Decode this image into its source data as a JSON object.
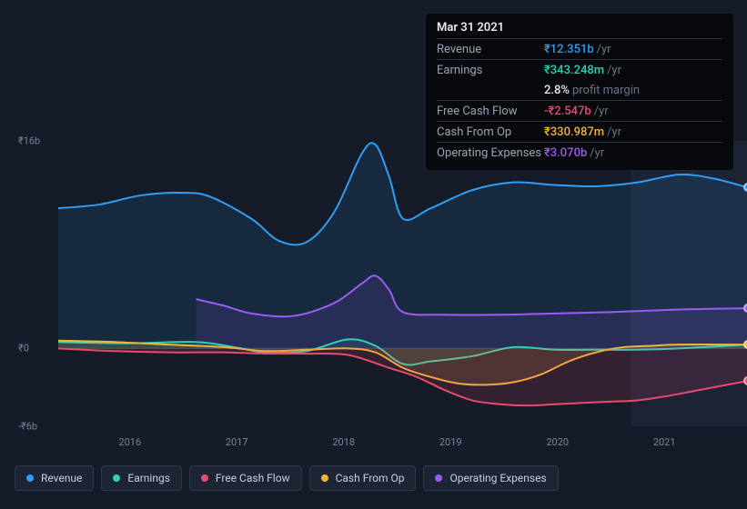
{
  "tooltip": {
    "date": "Mar 31 2021",
    "rows": [
      {
        "label": "Revenue",
        "value": "₹12.351b",
        "unit": "/yr",
        "color": "#2f9df4"
      },
      {
        "label": "Earnings",
        "value": "₹343.248m",
        "unit": "/yr",
        "color": "#2fd0b8"
      },
      {
        "label": "",
        "value": "2.8%",
        "unit": "profit margin",
        "color": "#e8ecf2",
        "no_border": true
      },
      {
        "label": "Free Cash Flow",
        "value": "-₹2.547b",
        "unit": "/yr",
        "color": "#e84a6f"
      },
      {
        "label": "Cash From Op",
        "value": "₹330.987m",
        "unit": "/yr",
        "color": "#f2b33d"
      },
      {
        "label": "Operating Expenses",
        "value": "₹3.070b",
        "unit": "/yr",
        "color": "#9a5cf4"
      }
    ]
  },
  "axes": {
    "y": {
      "min": -6,
      "max": 16,
      "ticks": [
        16,
        0,
        -6
      ],
      "labels": [
        "₹16b",
        "₹0",
        "-₹6b"
      ]
    },
    "x": {
      "ticks": [
        "2016",
        "2017",
        "2018",
        "2019",
        "2020",
        "2021"
      ],
      "positions_pct": [
        12.5,
        28,
        43.5,
        59,
        74.5,
        90
      ]
    }
  },
  "chart": {
    "type": "area",
    "background_color": "#151b27",
    "grid_color": "#2a3142",
    "plot_highlight_band": {
      "from_pct": 83,
      "to_pct": 100,
      "fill": "#1b2334"
    },
    "series": [
      {
        "name": "Revenue",
        "color": "#2f9df4",
        "fill_opacity": 0.12,
        "points": [
          [
            0,
            10.8
          ],
          [
            6,
            11.1
          ],
          [
            12,
            11.8
          ],
          [
            18,
            12.0
          ],
          [
            22,
            11.7
          ],
          [
            28,
            10.0
          ],
          [
            32,
            8.3
          ],
          [
            36,
            8.2
          ],
          [
            40,
            10.5
          ],
          [
            44,
            15.0
          ],
          [
            46,
            15.7
          ],
          [
            48,
            13.2
          ],
          [
            50,
            10.0
          ],
          [
            54,
            10.8
          ],
          [
            60,
            12.2
          ],
          [
            66,
            12.8
          ],
          [
            72,
            12.6
          ],
          [
            78,
            12.5
          ],
          [
            84,
            12.8
          ],
          [
            90,
            13.4
          ],
          [
            95,
            13.1
          ],
          [
            100,
            12.4
          ]
        ]
      },
      {
        "name": "Operating Expenses",
        "color": "#9a5cf4",
        "fill_opacity": 0.12,
        "start_pct": 20,
        "points": [
          [
            20,
            3.8
          ],
          [
            24,
            3.3
          ],
          [
            28,
            2.7
          ],
          [
            34,
            2.5
          ],
          [
            40,
            3.5
          ],
          [
            44,
            5.0
          ],
          [
            46,
            5.6
          ],
          [
            48,
            4.5
          ],
          [
            50,
            2.8
          ],
          [
            56,
            2.6
          ],
          [
            64,
            2.6
          ],
          [
            72,
            2.7
          ],
          [
            80,
            2.8
          ],
          [
            90,
            3.0
          ],
          [
            100,
            3.1
          ]
        ]
      },
      {
        "name": "Revenue_under",
        "color": "#1a4f7a",
        "fill_opacity": 0.06,
        "is_shadow": true,
        "points": []
      },
      {
        "name": "Earnings",
        "color": "#2fd0b8",
        "fill_opacity": 0.1,
        "points": [
          [
            0,
            0.5
          ],
          [
            10,
            0.4
          ],
          [
            20,
            0.5
          ],
          [
            26,
            0.05
          ],
          [
            30,
            -0.3
          ],
          [
            36,
            -0.2
          ],
          [
            42,
            0.7
          ],
          [
            46,
            0.2
          ],
          [
            50,
            -1.2
          ],
          [
            54,
            -1.0
          ],
          [
            60,
            -0.6
          ],
          [
            66,
            0.1
          ],
          [
            72,
            -0.1
          ],
          [
            78,
            -0.1
          ],
          [
            84,
            -0.1
          ],
          [
            90,
            0.0
          ],
          [
            100,
            0.3
          ]
        ]
      },
      {
        "name": "Cash From Op",
        "color": "#f2b33d",
        "fill_opacity": 0.15,
        "points": [
          [
            0,
            0.6
          ],
          [
            8,
            0.5
          ],
          [
            16,
            0.3
          ],
          [
            24,
            0.1
          ],
          [
            30,
            -0.2
          ],
          [
            36,
            -0.1
          ],
          [
            42,
            0.0
          ],
          [
            46,
            -0.3
          ],
          [
            50,
            -1.5
          ],
          [
            54,
            -2.2
          ],
          [
            58,
            -2.7
          ],
          [
            62,
            -2.8
          ],
          [
            66,
            -2.6
          ],
          [
            70,
            -2.0
          ],
          [
            74,
            -1.0
          ],
          [
            78,
            -0.3
          ],
          [
            82,
            0.1
          ],
          [
            86,
            0.2
          ],
          [
            90,
            0.3
          ],
          [
            100,
            0.3
          ]
        ]
      },
      {
        "name": "Free Cash Flow",
        "color": "#e84a6f",
        "fill_opacity": 0.15,
        "points": [
          [
            0,
            0.0
          ],
          [
            8,
            -0.2
          ],
          [
            16,
            -0.3
          ],
          [
            24,
            -0.3
          ],
          [
            30,
            -0.4
          ],
          [
            36,
            -0.4
          ],
          [
            42,
            -0.5
          ],
          [
            48,
            -1.5
          ],
          [
            52,
            -2.2
          ],
          [
            56,
            -3.2
          ],
          [
            60,
            -4.0
          ],
          [
            64,
            -4.3
          ],
          [
            68,
            -4.4
          ],
          [
            72,
            -4.3
          ],
          [
            76,
            -4.2
          ],
          [
            80,
            -4.1
          ],
          [
            84,
            -4.0
          ],
          [
            88,
            -3.7
          ],
          [
            92,
            -3.3
          ],
          [
            96,
            -2.9
          ],
          [
            100,
            -2.5
          ]
        ]
      }
    ],
    "end_dots": [
      {
        "series": "Revenue",
        "color": "#2f9df4"
      },
      {
        "series": "Operating Expenses",
        "color": "#9a5cf4"
      },
      {
        "series": "Cash From Op",
        "color": "#f2b33d"
      },
      {
        "series": "Free Cash Flow",
        "color": "#e84a6f"
      }
    ]
  },
  "legend": [
    {
      "label": "Revenue",
      "color": "#2f9df4"
    },
    {
      "label": "Earnings",
      "color": "#2fd0b8"
    },
    {
      "label": "Free Cash Flow",
      "color": "#e84a6f"
    },
    {
      "label": "Cash From Op",
      "color": "#f2b33d"
    },
    {
      "label": "Operating Expenses",
      "color": "#9a5cf4"
    }
  ]
}
